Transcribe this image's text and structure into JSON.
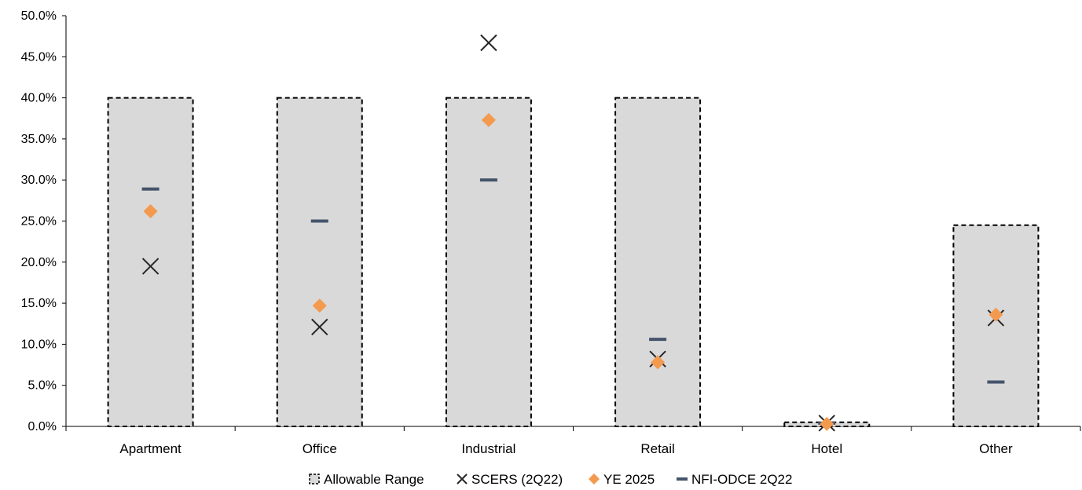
{
  "chart_data": {
    "type": "bar",
    "categories": [
      "Apartment",
      "Office",
      "Industrial",
      "Retail",
      "Hotel",
      "Other"
    ],
    "ylim": [
      0,
      50
    ],
    "y_ticks": [
      0,
      5,
      10,
      15,
      20,
      25,
      30,
      35,
      40,
      45,
      50
    ],
    "y_tick_labels": [
      "0.0%",
      "5.0%",
      "10.0%",
      "15.0%",
      "20.0%",
      "25.0%",
      "30.0%",
      "35.0%",
      "40.0%",
      "45.0%",
      "50.0%"
    ],
    "grid": false,
    "legend_position": "bottom",
    "series": [
      {
        "name": "Allowable Range",
        "kind": "range-bar",
        "color": "#d9d9d9",
        "border": "#000000",
        "low": [
          0,
          0,
          0,
          0,
          0,
          0
        ],
        "high": [
          40,
          40,
          40,
          40,
          0.5,
          24.5
        ]
      },
      {
        "name": "SCERS (2Q22)",
        "kind": "x-marker",
        "color": "#262626",
        "values": [
          19.5,
          12.1,
          46.7,
          8.2,
          0.4,
          13.2
        ]
      },
      {
        "name": "YE 2025",
        "kind": "diamond",
        "color": "#f39a4f",
        "values": [
          26.2,
          14.7,
          37.3,
          7.8,
          0.3,
          13.6
        ]
      },
      {
        "name": "NFI-ODCE 2Q22",
        "kind": "dash",
        "color": "#44546a",
        "values": [
          28.9,
          25.0,
          30.0,
          10.6,
          0.4,
          5.4
        ]
      }
    ]
  }
}
